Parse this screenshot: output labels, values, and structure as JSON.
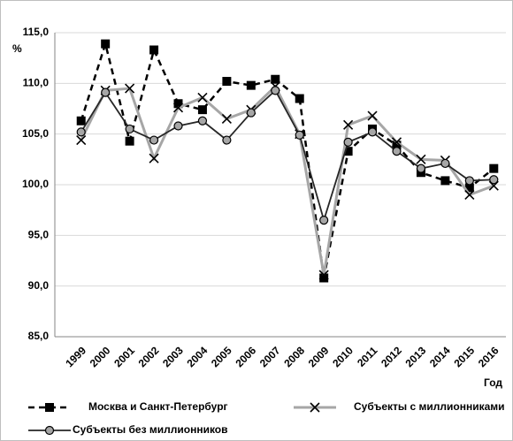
{
  "chart_data": {
    "type": "line",
    "y_label": "%",
    "x_label": "Год",
    "categories": [
      "1999",
      "2000",
      "2001",
      "2002",
      "2003",
      "2004",
      "2005",
      "2006",
      "2007",
      "2008",
      "2009",
      "2010",
      "2011",
      "2012",
      "2013",
      "2014",
      "2015",
      "2016"
    ],
    "series": [
      {
        "name": "Москва и Санкт-Петербург",
        "color": "#000000",
        "marker": "square",
        "marker_color": "#000000",
        "dashed": true,
        "values": [
          106.3,
          113.9,
          104.3,
          113.3,
          108.0,
          107.4,
          110.2,
          109.8,
          110.4,
          108.5,
          90.8,
          103.3,
          105.5,
          103.9,
          101.2,
          100.4,
          99.7,
          101.6
        ]
      },
      {
        "name": "Субъекты с миллионниками",
        "color": "#a6a6a6",
        "marker": "cross",
        "marker_color": "#000000",
        "dashed": false,
        "values": [
          104.4,
          109.3,
          109.5,
          102.6,
          107.6,
          108.6,
          106.5,
          107.4,
          109.7,
          105.0,
          91.1,
          105.9,
          106.8,
          104.2,
          102.5,
          102.4,
          99.0,
          99.9
        ]
      },
      {
        "name": "Субъекты без миллионников",
        "color": "#262626",
        "marker": "circle",
        "marker_color": "#a6a6a6",
        "dashed": false,
        "values": [
          105.2,
          109.1,
          105.5,
          104.4,
          105.8,
          106.3,
          104.4,
          107.1,
          109.3,
          104.9,
          96.5,
          104.2,
          105.2,
          103.3,
          101.6,
          102.1,
          100.4,
          100.5
        ]
      }
    ],
    "ylim": [
      85,
      115
    ],
    "yticks": [
      {
        "value": 85,
        "label": "85,0"
      },
      {
        "value": 90,
        "label": "90,0"
      },
      {
        "value": 95,
        "label": "95,0"
      },
      {
        "value": 100,
        "label": "100,0"
      },
      {
        "value": 105,
        "label": "105,0"
      },
      {
        "value": 110,
        "label": "110,0"
      },
      {
        "value": 115,
        "label": "115,0"
      }
    ],
    "grid": true
  }
}
